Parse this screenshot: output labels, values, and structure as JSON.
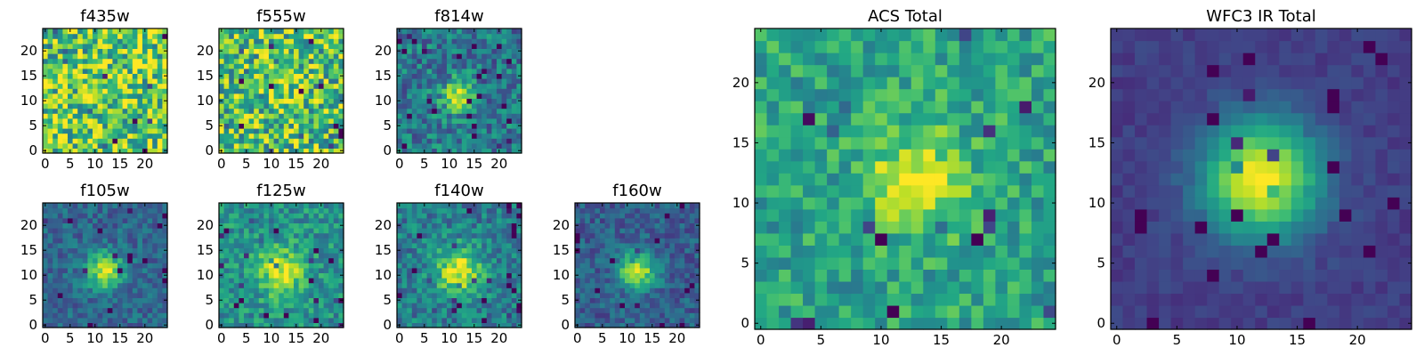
{
  "chart_data": [
    {
      "type": "heatmap",
      "title": "f435w",
      "colormap": "viridis",
      "xlim": [
        -0.5,
        24.5
      ],
      "ylim": [
        -0.5,
        24.5
      ],
      "xticks": [
        0,
        5,
        10,
        15,
        20
      ],
      "yticks": [
        0,
        5,
        10,
        15,
        20
      ],
      "description": "Noise-dominated field, mostly yellow-green with scattered dark pixels, no clear source"
    },
    {
      "type": "heatmap",
      "title": "f555w",
      "colormap": "viridis",
      "xlim": [
        -0.5,
        24.5
      ],
      "ylim": [
        -0.5,
        24.5
      ],
      "xticks": [
        0,
        5,
        10,
        15,
        20
      ],
      "yticks": [
        0,
        5,
        10,
        15,
        20
      ],
      "description": "Noise-dominated field with faint hint of a source near (13, 11)"
    },
    {
      "type": "heatmap",
      "title": "f814w",
      "colormap": "viridis",
      "xlim": [
        -0.5,
        24.5
      ],
      "ylim": [
        -0.5,
        24.5
      ],
      "xticks": [
        0,
        5,
        10,
        15,
        20
      ],
      "yticks": [
        0,
        5,
        10,
        15,
        20
      ],
      "description": "Compact bright source centered near (12, 11) on a teal noisy background"
    },
    {
      "type": "heatmap",
      "title": "f105w",
      "colormap": "viridis",
      "xlim": [
        -0.5,
        24.5
      ],
      "ylim": [
        -0.5,
        24.5
      ],
      "xticks": [
        0,
        5,
        10,
        15,
        20
      ],
      "yticks": [
        0,
        5,
        10,
        15,
        20
      ],
      "description": "Bright source centered near (12, 11)"
    },
    {
      "type": "heatmap",
      "title": "f125w",
      "colormap": "viridis",
      "xlim": [
        -0.5,
        24.5
      ],
      "ylim": [
        -0.5,
        24.5
      ],
      "xticks": [
        0,
        5,
        10,
        15,
        20
      ],
      "yticks": [
        0,
        5,
        10,
        15,
        20
      ],
      "description": "Bright source centered near (12, 11) with extended green halo"
    },
    {
      "type": "heatmap",
      "title": "f140w",
      "colormap": "viridis",
      "xlim": [
        -0.5,
        24.5
      ],
      "ylim": [
        -0.5,
        24.5
      ],
      "xticks": [
        0,
        5,
        10,
        15,
        20
      ],
      "yticks": [
        0,
        5,
        10,
        15,
        20
      ],
      "description": "Bright source centered near (12, 11) with diffuse halo"
    },
    {
      "type": "heatmap",
      "title": "f160w",
      "colormap": "viridis",
      "xlim": [
        -0.5,
        24.5
      ],
      "ylim": [
        -0.5,
        24.5
      ],
      "xticks": [
        0,
        5,
        10,
        15,
        20
      ],
      "yticks": [
        0,
        5,
        10,
        15,
        20
      ],
      "description": "Bright source centered near (12, 11)"
    },
    {
      "type": "heatmap",
      "title": "ACS Total",
      "colormap": "viridis",
      "xlim": [
        -0.5,
        24.5
      ],
      "ylim": [
        -0.5,
        24.5
      ],
      "xticks": [
        0,
        5,
        10,
        15,
        20
      ],
      "yticks": [
        0,
        5,
        10,
        15,
        20
      ],
      "description": "Bright source centered near (13, 12) on a noisy green background"
    },
    {
      "type": "heatmap",
      "title": "WFC3 IR Total",
      "colormap": "viridis",
      "xlim": [
        -0.5,
        24.5
      ],
      "ylim": [
        -0.5,
        24.5
      ],
      "xticks": [
        0,
        5,
        10,
        15,
        20
      ],
      "yticks": [
        0,
        5,
        10,
        15,
        20
      ],
      "description": "Smooth bright source centered near (12, 12) on a dark blue background"
    }
  ]
}
